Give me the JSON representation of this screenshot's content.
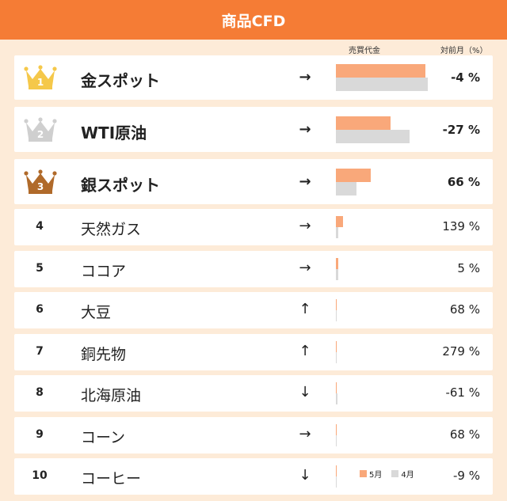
{
  "title": "商品CFD",
  "columns": {
    "volume": "売買代金",
    "change": "対前月（%）"
  },
  "legend": {
    "may": "5月",
    "apr": "4月"
  },
  "colors": {
    "header": "#f57c35",
    "may": "#f9a87a",
    "apr": "#d9d9d9",
    "gold": "#f5c84a",
    "silver": "#cfcfcf",
    "bronze": "#b06a2a"
  },
  "rows": [
    {
      "rank": "1",
      "name": "金スポット",
      "trend": "→",
      "change": "-4 %",
      "crown": "gold"
    },
    {
      "rank": "2",
      "name": "WTI原油",
      "trend": "→",
      "change": "-27 %",
      "crown": "silver"
    },
    {
      "rank": "3",
      "name": "銀スポット",
      "trend": "→",
      "change": "66 %",
      "crown": "bronze"
    },
    {
      "rank": "4",
      "name": "天然ガス",
      "trend": "→",
      "change": "139 %"
    },
    {
      "rank": "5",
      "name": "ココア",
      "trend": "→",
      "change": "5 %"
    },
    {
      "rank": "6",
      "name": "大豆",
      "trend": "↑",
      "change": "68 %"
    },
    {
      "rank": "7",
      "name": "銅先物",
      "trend": "↑",
      "change": "279 %"
    },
    {
      "rank": "8",
      "name": "北海原油",
      "trend": "↓",
      "change": "-61 %"
    },
    {
      "rank": "9",
      "name": "コーン",
      "trend": "→",
      "change": "68 %"
    },
    {
      "rank": "10",
      "name": "コーヒー",
      "trend": "↓",
      "change": "-9 %"
    }
  ],
  "chart_data": {
    "type": "bar",
    "categories": [
      "金スポット",
      "WTI原油",
      "銀スポット",
      "天然ガス",
      "ココア",
      "大豆",
      "銅先物",
      "北海原油",
      "コーン",
      "コーヒー"
    ],
    "series": [
      {
        "name": "5月",
        "values": [
          100,
          61,
          39,
          8,
          3,
          1,
          1,
          0.8,
          0.5,
          0.4
        ]
      },
      {
        "name": "4月",
        "values": [
          103,
          83,
          23,
          3,
          3,
          1,
          0.3,
          2,
          0.3,
          0.4
        ]
      }
    ],
    "change_percent": [
      -4,
      -27,
      66,
      139,
      5,
      68,
      279,
      -61,
      68,
      -9
    ]
  }
}
